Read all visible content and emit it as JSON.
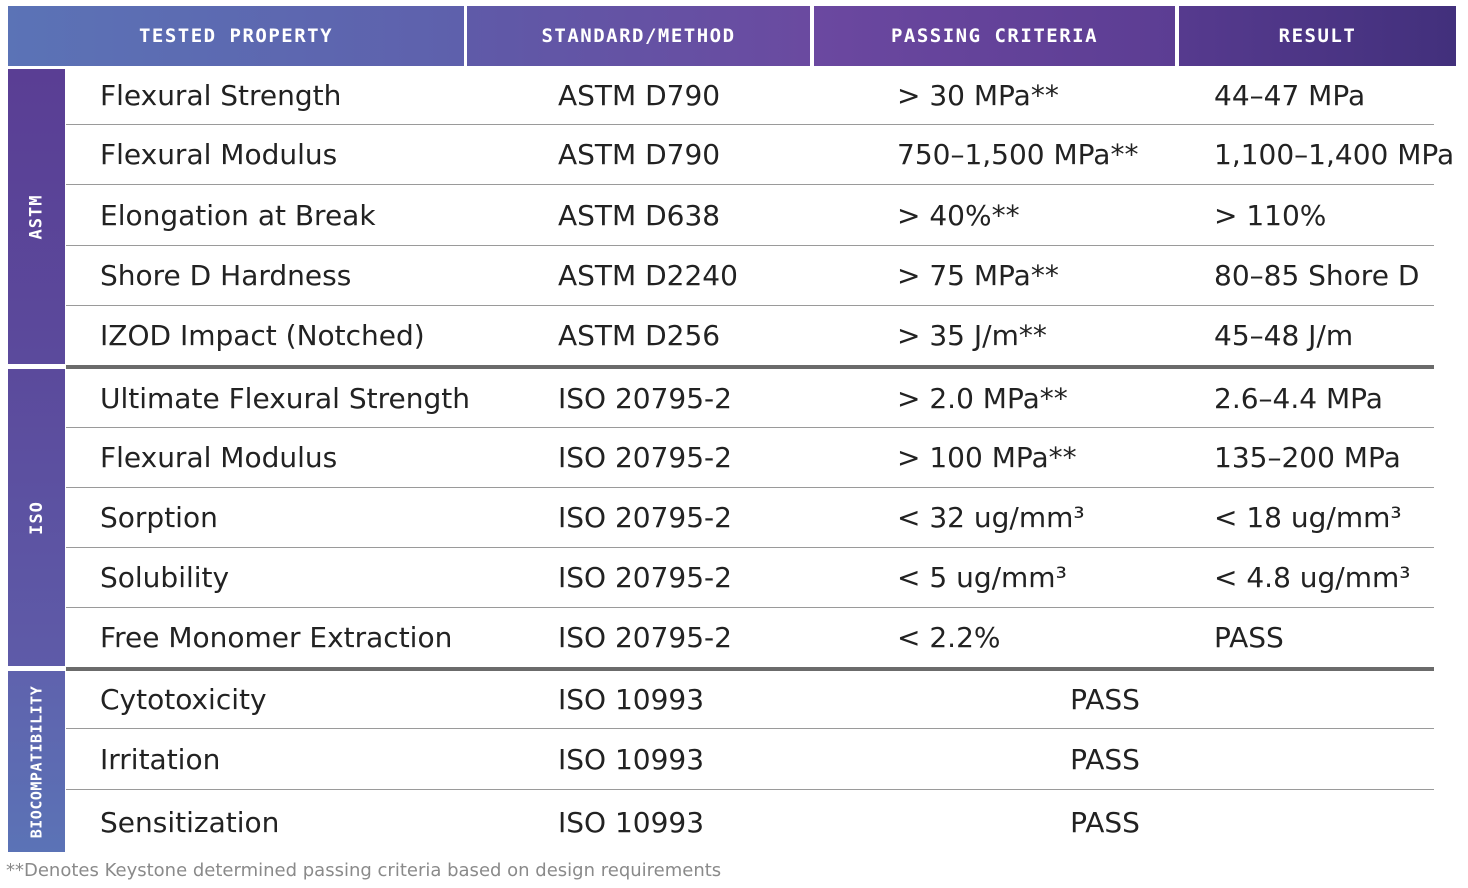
{
  "header": {
    "col1": "TESTED PROPERTY",
    "col2": "STANDARD/METHOD",
    "col3": "PASSING CRITERIA",
    "col4": "RESULT"
  },
  "categories": {
    "astm": "ASTM",
    "iso": "ISO",
    "bio": "BIOCOMPATIBILITY"
  },
  "rows": [
    {
      "property": "Flexural Strength",
      "standard": "ASTM D790",
      "criteria": "> 30 MPa**",
      "result": "44–47 MPa"
    },
    {
      "property": "Flexural Modulus",
      "standard": "ASTM D790",
      "criteria": "750–1,500 MPa**",
      "result": "1,100–1,400 MPa"
    },
    {
      "property": "Elongation at Break",
      "standard": "ASTM D638",
      "criteria": "> 40%**",
      "result": "> 110%"
    },
    {
      "property": "Shore D Hardness",
      "standard": "ASTM D2240",
      "criteria": "> 75 MPa**",
      "result": "80–85 Shore D"
    },
    {
      "property": "IZOD Impact (Notched)",
      "standard": "ASTM D256",
      "criteria": "> 35 J/m**",
      "result": "45–48 J/m"
    },
    {
      "property": "Ultimate Flexural Strength",
      "standard": "ISO 20795-2",
      "criteria": "> 2.0 MPa**",
      "result": "2.6–4.4 MPa"
    },
    {
      "property": "Flexural Modulus",
      "standard": "ISO 20795-2",
      "criteria": "> 100 MPa**",
      "result": "135–200 MPa"
    },
    {
      "property": "Sorption",
      "standard": "ISO 20795-2",
      "criteria": "< 32 ug/mm³",
      "result": "< 18 ug/mm³"
    },
    {
      "property": "Solubility",
      "standard": "ISO 20795-2",
      "criteria": "< 5 ug/mm³",
      "result": "< 4.8 ug/mm³"
    },
    {
      "property": "Free Monomer Extraction",
      "standard": "ISO 20795-2",
      "criteria": "< 2.2%",
      "result": "PASS"
    },
    {
      "property": "Cytotoxicity",
      "standard": "ISO 10993",
      "outcome": "PASS"
    },
    {
      "property": "Irritation",
      "standard": "ISO 10993",
      "outcome": "PASS"
    },
    {
      "property": "Sensitization",
      "standard": "ISO 10993",
      "outcome": "PASS"
    }
  ],
  "footnote": "**Denotes Keystone determined passing criteria based on design requirements"
}
